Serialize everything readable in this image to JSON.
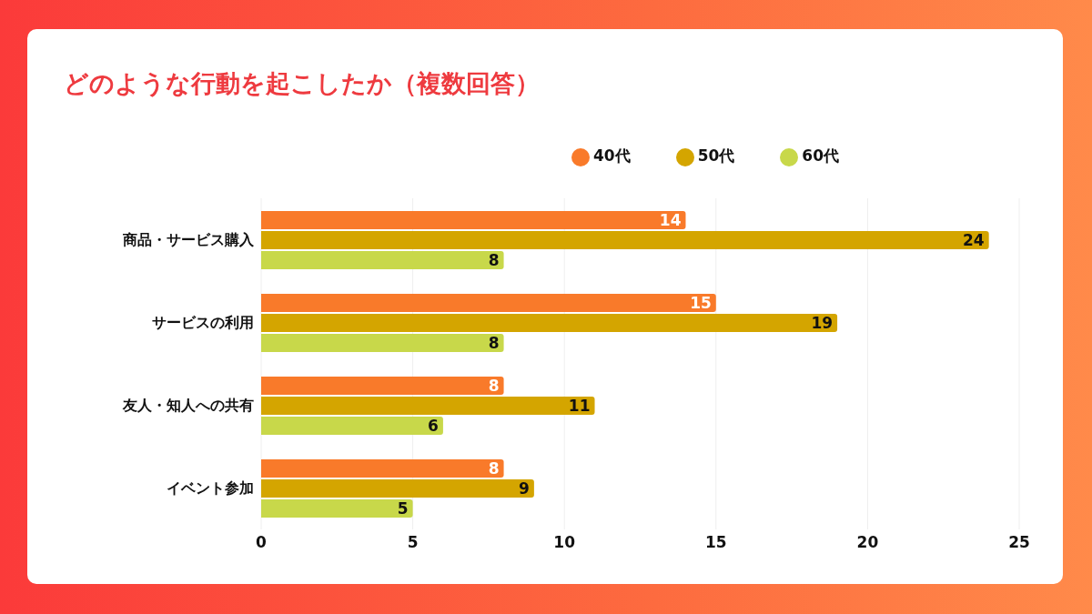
{
  "chart_data": {
    "type": "bar",
    "orientation": "horizontal",
    "title": "どのような行動を起こしたか（複数回答）",
    "categories": [
      "商品・サービス購入",
      "サービスの利用",
      "友人・知人への共有",
      "イベント参加"
    ],
    "series": [
      {
        "name": "40代",
        "color": "#f97a2a",
        "values": [
          14,
          15,
          8,
          8
        ]
      },
      {
        "name": "50代",
        "color": "#d4a500",
        "values": [
          24,
          19,
          11,
          9
        ]
      },
      {
        "name": "60代",
        "color": "#c8d84a",
        "values": [
          8,
          8,
          6,
          5
        ]
      }
    ],
    "xlim": [
      0,
      25
    ],
    "xticks": [
      0,
      5,
      10,
      15,
      20,
      25
    ],
    "grid": "x",
    "legend": "top",
    "data_labels": true
  }
}
